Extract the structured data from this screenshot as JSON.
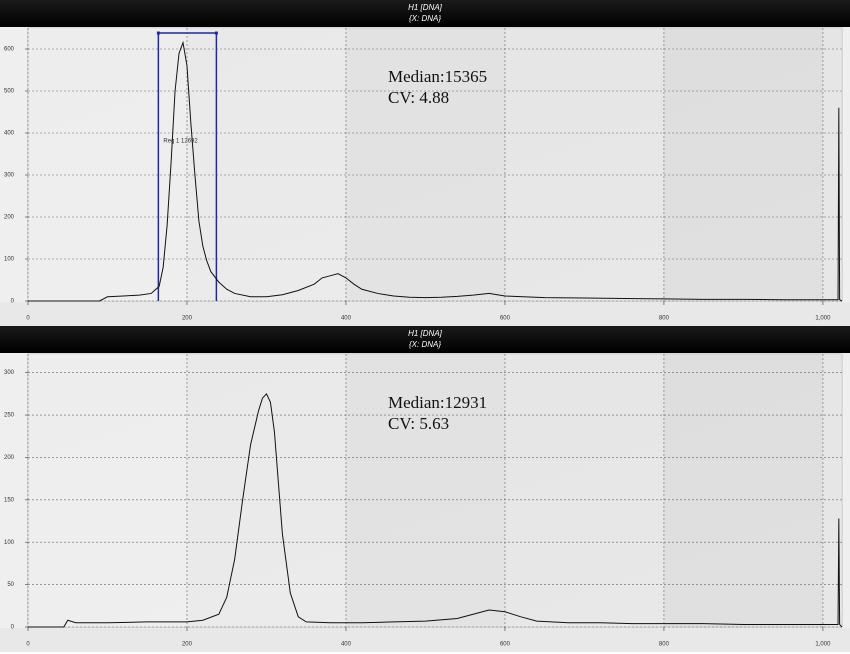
{
  "chart_data": [
    {
      "type": "line",
      "title": "H1 [DNA]",
      "subtitle": "{X: DNA}",
      "color": "#111111",
      "xlim": [
        0,
        1024
      ],
      "xticks": [
        0,
        200,
        400,
        600,
        800,
        {
          "value": 1000,
          "label": "1,000"
        }
      ],
      "ylim": [
        0,
        650
      ],
      "yticks": [
        0,
        100,
        200,
        300,
        400,
        500,
        600
      ],
      "grid": true,
      "x": [
        0,
        90,
        100,
        120,
        140,
        155,
        165,
        170,
        175,
        180,
        185,
        190,
        195,
        200,
        205,
        210,
        215,
        220,
        225,
        230,
        240,
        250,
        260,
        280,
        300,
        320,
        340,
        360,
        370,
        380,
        390,
        400,
        410,
        420,
        440,
        460,
        480,
        500,
        520,
        540,
        560,
        580,
        600,
        650,
        700,
        750,
        800,
        850,
        900,
        950,
        1000,
        1015,
        1019,
        1020,
        1021,
        1024
      ],
      "values": [
        0,
        0,
        10,
        12,
        14,
        18,
        35,
        80,
        180,
        330,
        500,
        590,
        615,
        560,
        420,
        300,
        190,
        130,
        95,
        70,
        45,
        28,
        18,
        10,
        10,
        15,
        25,
        40,
        55,
        60,
        65,
        55,
        40,
        28,
        18,
        12,
        9,
        8,
        9,
        11,
        14,
        18,
        12,
        8,
        7,
        6,
        5,
        4,
        4,
        3,
        3,
        3,
        3,
        460,
        3,
        0
      ],
      "annotations": [
        "Median:15365",
        "CV: 4.88"
      ],
      "region": {
        "label": "Reg 1 12692",
        "x": [
          164,
          237
        ],
        "top": 638
      }
    },
    {
      "type": "line",
      "title": "H1 [DNA]",
      "subtitle": "{X: DNA}",
      "color": "#111111",
      "xlim": [
        0,
        1024
      ],
      "xticks": [
        0,
        200,
        400,
        600,
        800,
        {
          "value": 1000,
          "label": "1,000"
        }
      ],
      "ylim": [
        0,
        322
      ],
      "yticks": [
        0,
        50,
        100,
        150,
        200,
        250,
        300
      ],
      "grid": true,
      "x": [
        0,
        45,
        50,
        60,
        100,
        150,
        200,
        220,
        240,
        250,
        260,
        270,
        280,
        290,
        295,
        300,
        305,
        310,
        315,
        320,
        330,
        340,
        350,
        380,
        420,
        460,
        500,
        540,
        560,
        580,
        600,
        620,
        640,
        680,
        720,
        760,
        800,
        850,
        900,
        950,
        1000,
        1015,
        1019,
        1020,
        1021,
        1024
      ],
      "values": [
        0,
        0,
        8,
        5,
        5,
        6,
        6,
        8,
        15,
        35,
        80,
        150,
        215,
        255,
        270,
        275,
        265,
        230,
        170,
        110,
        40,
        12,
        6,
        5,
        5,
        6,
        7,
        10,
        15,
        20,
        18,
        12,
        7,
        5,
        5,
        4,
        4,
        4,
        3,
        3,
        3,
        3,
        3,
        128,
        3,
        0
      ],
      "annotations": [
        "Median:12931",
        "CV: 5.63"
      ]
    }
  ]
}
